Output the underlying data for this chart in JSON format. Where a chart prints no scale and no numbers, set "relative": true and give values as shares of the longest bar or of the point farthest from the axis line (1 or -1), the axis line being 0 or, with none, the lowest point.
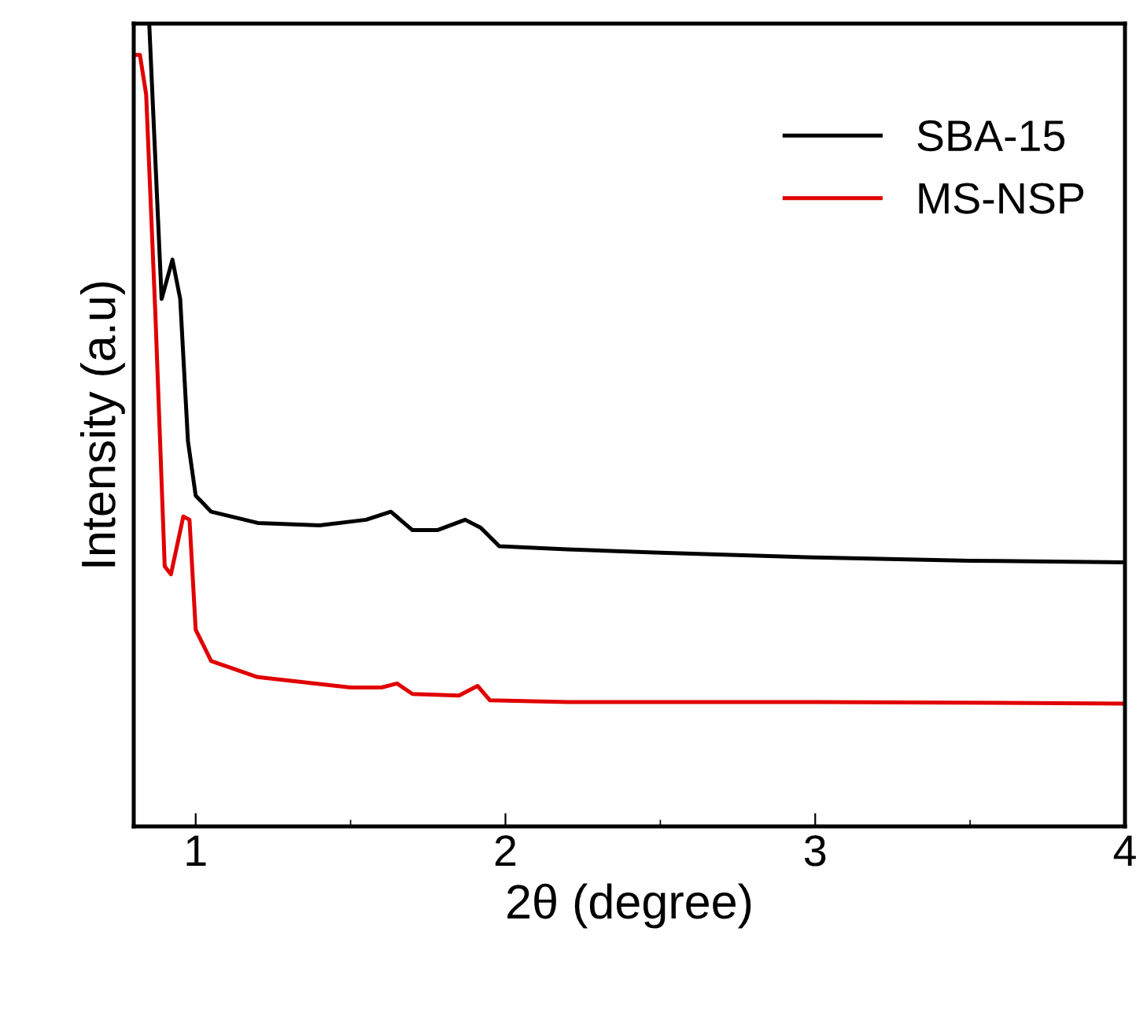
{
  "chart_data": {
    "type": "line",
    "xlabel": "2θ (degree)",
    "ylabel": "Intensity (a.u)",
    "relative": true,
    "xlim": [
      0.8,
      4
    ],
    "xticks": [
      1,
      2,
      3,
      4
    ],
    "legend": "top right",
    "grid": false,
    "line_style": "solid",
    "marker": "none",
    "series": [
      {
        "name": "SBA-15",
        "color": "#000000",
        "x": [
          0.85,
          0.89,
          0.925,
          0.95,
          0.975,
          1.0,
          1.05,
          1.2,
          1.4,
          1.55,
          1.63,
          1.7,
          1.78,
          1.87,
          1.92,
          1.98,
          2.2,
          2.5,
          3.0,
          3.5,
          4.0
        ],
        "values": [
          1.0,
          0.657,
          0.706,
          0.657,
          0.48,
          0.412,
          0.392,
          0.378,
          0.375,
          0.382,
          0.392,
          0.369,
          0.369,
          0.382,
          0.372,
          0.349,
          0.345,
          0.341,
          0.335,
          0.331,
          0.329
        ]
      },
      {
        "name": "MS-NSP",
        "color": "#e00000",
        "x": [
          0.8,
          0.82,
          0.84,
          0.87,
          0.9,
          0.92,
          0.96,
          0.98,
          1.0,
          1.05,
          1.2,
          1.5,
          1.6,
          1.65,
          1.7,
          1.85,
          1.91,
          1.95,
          2.2,
          3.0,
          4.0
        ],
        "values": [
          0.961,
          0.961,
          0.912,
          0.637,
          0.324,
          0.314,
          0.386,
          0.382,
          0.245,
          0.206,
          0.186,
          0.173,
          0.173,
          0.178,
          0.165,
          0.163,
          0.175,
          0.157,
          0.155,
          0.155,
          0.153
        ]
      }
    ]
  }
}
